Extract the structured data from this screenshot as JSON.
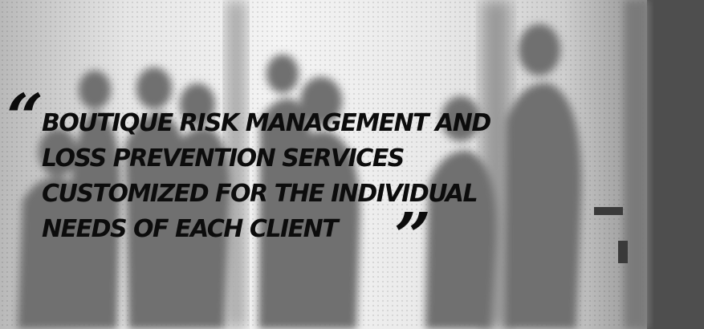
{
  "quote": {
    "open_mark": "“",
    "close_mark": "”",
    "lines": [
      "BOUTIQUE RISK MANAGEMENT AND",
      "LOSS PREVENTION SERVICES",
      "CUSTOMIZED FOR THE INDIVIDUAL",
      "NEEDS OF EACH CLIENT"
    ]
  },
  "colors": {
    "text": "#0c0c0c",
    "silhouette": "#6f6f6f"
  }
}
